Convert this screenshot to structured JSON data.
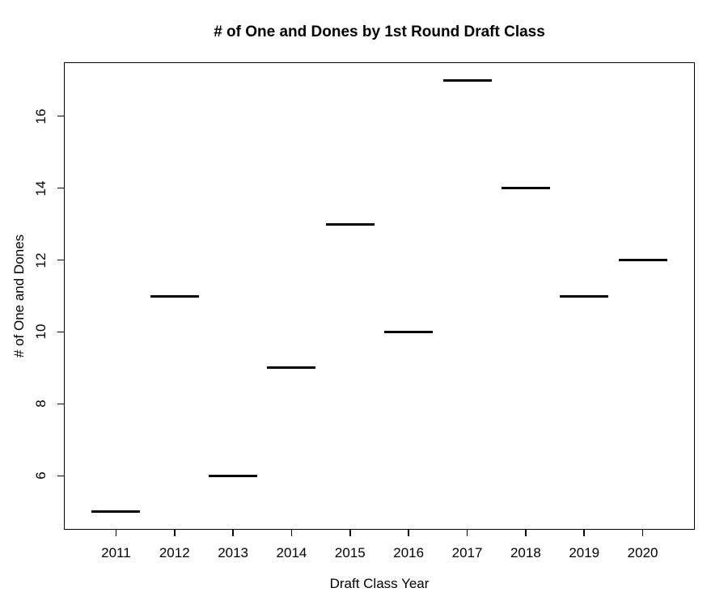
{
  "figure": {
    "background": "#ffffff",
    "foreground": "#000000"
  },
  "chart_data": {
    "type": "scatter",
    "marker": "horizontal-dash",
    "title": "# of One and Dones by 1st Round Draft Class",
    "xlabel": "Draft Class Year",
    "ylabel": "# of One and Dones",
    "categories": [
      2011,
      2012,
      2013,
      2014,
      2015,
      2016,
      2017,
      2018,
      2019,
      2020
    ],
    "series": [
      {
        "name": "# of One and Dones",
        "values": [
          5,
          11,
          6,
          9,
          13,
          10,
          17,
          14,
          11,
          12
        ]
      }
    ],
    "xticks": [
      2011,
      2012,
      2013,
      2014,
      2015,
      2016,
      2017,
      2018,
      2019,
      2020
    ],
    "yticks": [
      6,
      8,
      10,
      12,
      14,
      16
    ],
    "xlim": [
      2010.11,
      2020.89
    ],
    "ylim": [
      4.5,
      17.5
    ],
    "marker_halfwidth_x": 0.415,
    "marker_color": "#000000",
    "grid": "off",
    "legend": "none"
  }
}
